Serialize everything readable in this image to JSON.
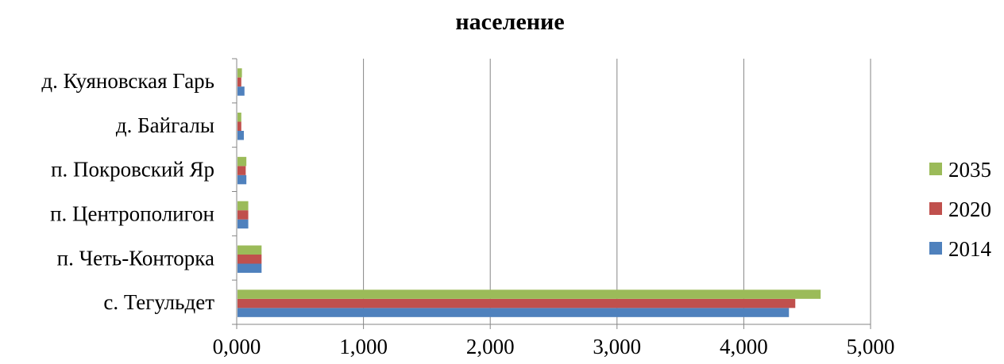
{
  "chart_data": {
    "type": "bar",
    "orientation": "horizontal",
    "title": "население",
    "categories": [
      "с. Тегульдет",
      "п. Четь-Конторка",
      "п. Центрополигон",
      "п. Покровский Яр",
      "д. Байгалы",
      "д. Куяновская Гарь"
    ],
    "series": [
      {
        "name": "2014",
        "color": "#4f81bd",
        "values": [
          4350,
          190,
          85,
          70,
          50,
          55
        ]
      },
      {
        "name": "2020",
        "color": "#c0504d",
        "values": [
          4400,
          190,
          85,
          65,
          30,
          30
        ]
      },
      {
        "name": "2035",
        "color": "#9bbb59",
        "values": [
          4600,
          190,
          85,
          70,
          30,
          35
        ]
      }
    ],
    "xlim": [
      0,
      5000
    ],
    "x_ticks": [
      0,
      1000,
      2000,
      3000,
      4000,
      5000
    ],
    "x_tick_labels": [
      "0,000",
      "1,000",
      "2,000",
      "3,000",
      "4,000",
      "5,000"
    ],
    "xlabel": "",
    "ylabel": "",
    "grid": true,
    "legend_position": "right",
    "legend_order": [
      "2035",
      "2020",
      "2014"
    ]
  }
}
